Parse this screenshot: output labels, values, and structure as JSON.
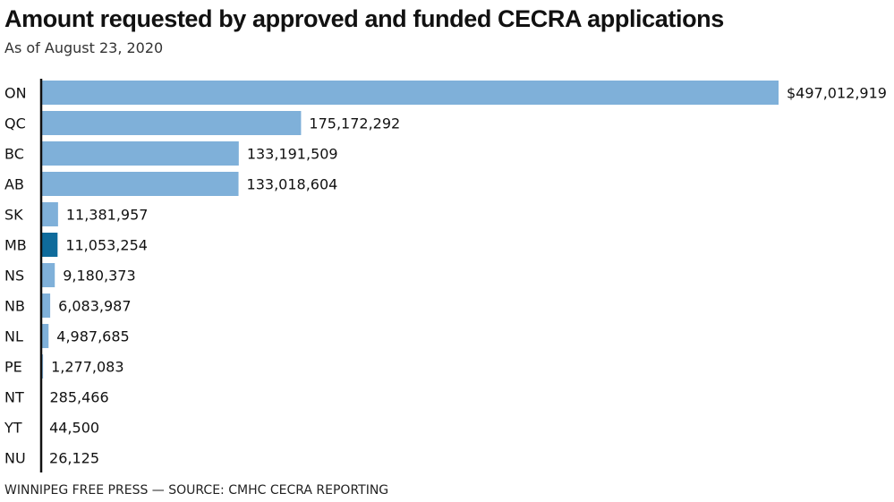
{
  "header": {
    "title": "Amount requested by approved and funded CECRA applications",
    "subtitle": "As of August 23, 2020"
  },
  "footer": {
    "credit": "WINNIPEG FREE PRESS — SOURCE: CMHC CECRA REPORTING"
  },
  "colors": {
    "bar": "#7fb0d9",
    "highlight": "#0f6b9b",
    "axis": "#111111"
  },
  "chart_data": {
    "type": "bar",
    "orientation": "horizontal",
    "title": "Amount requested by approved and funded CECRA applications",
    "subtitle": "As of August 23, 2020",
    "categories": [
      "ON",
      "QC",
      "BC",
      "AB",
      "SK",
      "MB",
      "NS",
      "NB",
      "NL",
      "PE",
      "NT",
      "YT",
      "NU"
    ],
    "values": [
      497012919,
      175172292,
      133191509,
      133018604,
      11381957,
      11053254,
      9180373,
      6083987,
      4987685,
      1277083,
      285466,
      44500,
      26125
    ],
    "value_labels": [
      "$497,012,919",
      "175,172,292",
      "133,191,509",
      "133,018,604",
      "11,381,957",
      "11,053,254",
      "9,180,373",
      "6,083,987",
      "4,987,685",
      "1,277,083",
      "285,466",
      "44,500",
      "26,125"
    ],
    "highlight": "MB",
    "xlim": [
      0,
      497012919
    ],
    "grid": false,
    "legend": "none"
  }
}
